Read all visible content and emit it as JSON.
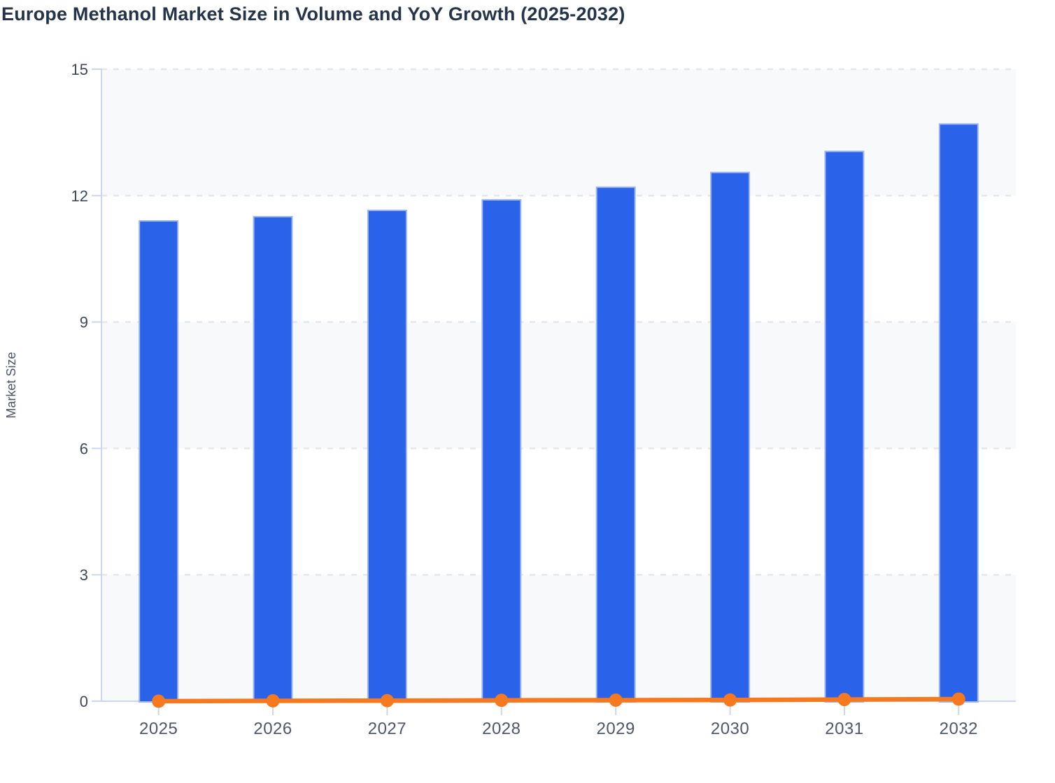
{
  "chart_data": {
    "type": "bar",
    "title": "Europe Methanol Market Size in Volume and YoY Growth (2025-2032)",
    "xlabel": "",
    "ylabel": "Market Size",
    "categories": [
      "2025",
      "2026",
      "2027",
      "2028",
      "2029",
      "2030",
      "2031",
      "2032"
    ],
    "series": [
      {
        "name": "Market Size",
        "type": "bar",
        "values": [
          11.4,
          11.5,
          11.65,
          11.9,
          12.2,
          12.55,
          13.05,
          13.7
        ]
      },
      {
        "name": "YoY Growth",
        "type": "line",
        "values": [
          0,
          0.009,
          0.013,
          0.021,
          0.025,
          0.029,
          0.04,
          0.05
        ]
      }
    ],
    "ylim": [
      0,
      15
    ],
    "yticks": [
      0,
      3,
      6,
      9,
      12,
      15
    ],
    "ytick_labels": [
      "0",
      "3",
      "6",
      "9",
      "12",
      "15"
    ],
    "grid": "horizontal-dashed",
    "background_bands": "alternating horizontal stripes, light band starts at top (15-12)",
    "legend_position": "none"
  },
  "colors": {
    "background": "#FFFFFF",
    "bar": "#2A63E9",
    "bar_border": "#9FB6EE",
    "line": "#F7791F",
    "marker": "#F7791F",
    "grid": "#E4E6EB",
    "axis": "#CDD6F0",
    "stripe": "#F8F9FB",
    "title_text": "#253449",
    "ytick_text": "#3E4857",
    "xtick_text": "#4E5869",
    "axis_title_text": "#4A5563"
  }
}
